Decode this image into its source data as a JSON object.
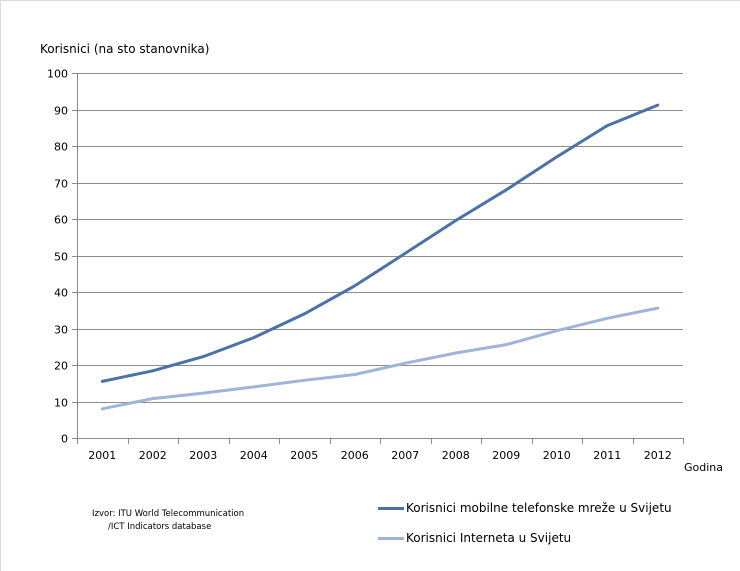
{
  "chart_data": {
    "type": "line",
    "ylabel": "Korisnici (na sto stanovnika)",
    "xlabel": "Godina",
    "categories": [
      "2001",
      "2002",
      "2003",
      "2004",
      "2005",
      "2006",
      "2007",
      "2008",
      "2009",
      "2010",
      "2011",
      "2012"
    ],
    "ylim": [
      0,
      100
    ],
    "yticks": [
      0,
      10,
      20,
      30,
      40,
      50,
      60,
      70,
      80,
      90,
      100
    ],
    "grid": true,
    "legend_position": "bottom-right",
    "series": [
      {
        "name": "Korisnici mobilne telefonske mreže u Svijetu",
        "color": "#4a72a8",
        "values": [
          15.5,
          18.4,
          22.3,
          27.5,
          34.0,
          41.7,
          50.6,
          59.6,
          68.0,
          77.0,
          85.6,
          91.2
        ]
      },
      {
        "name": "Korisnici Interneta u Svijetu",
        "color": "#9eb4da",
        "values": [
          8.0,
          10.8,
          12.3,
          14.0,
          15.8,
          17.4,
          20.5,
          23.3,
          25.6,
          29.4,
          32.8,
          35.6
        ]
      }
    ]
  },
  "source": {
    "line1": "Izvor:  ITU World Telecommunication",
    "line2": "/ICT Indicators database"
  }
}
